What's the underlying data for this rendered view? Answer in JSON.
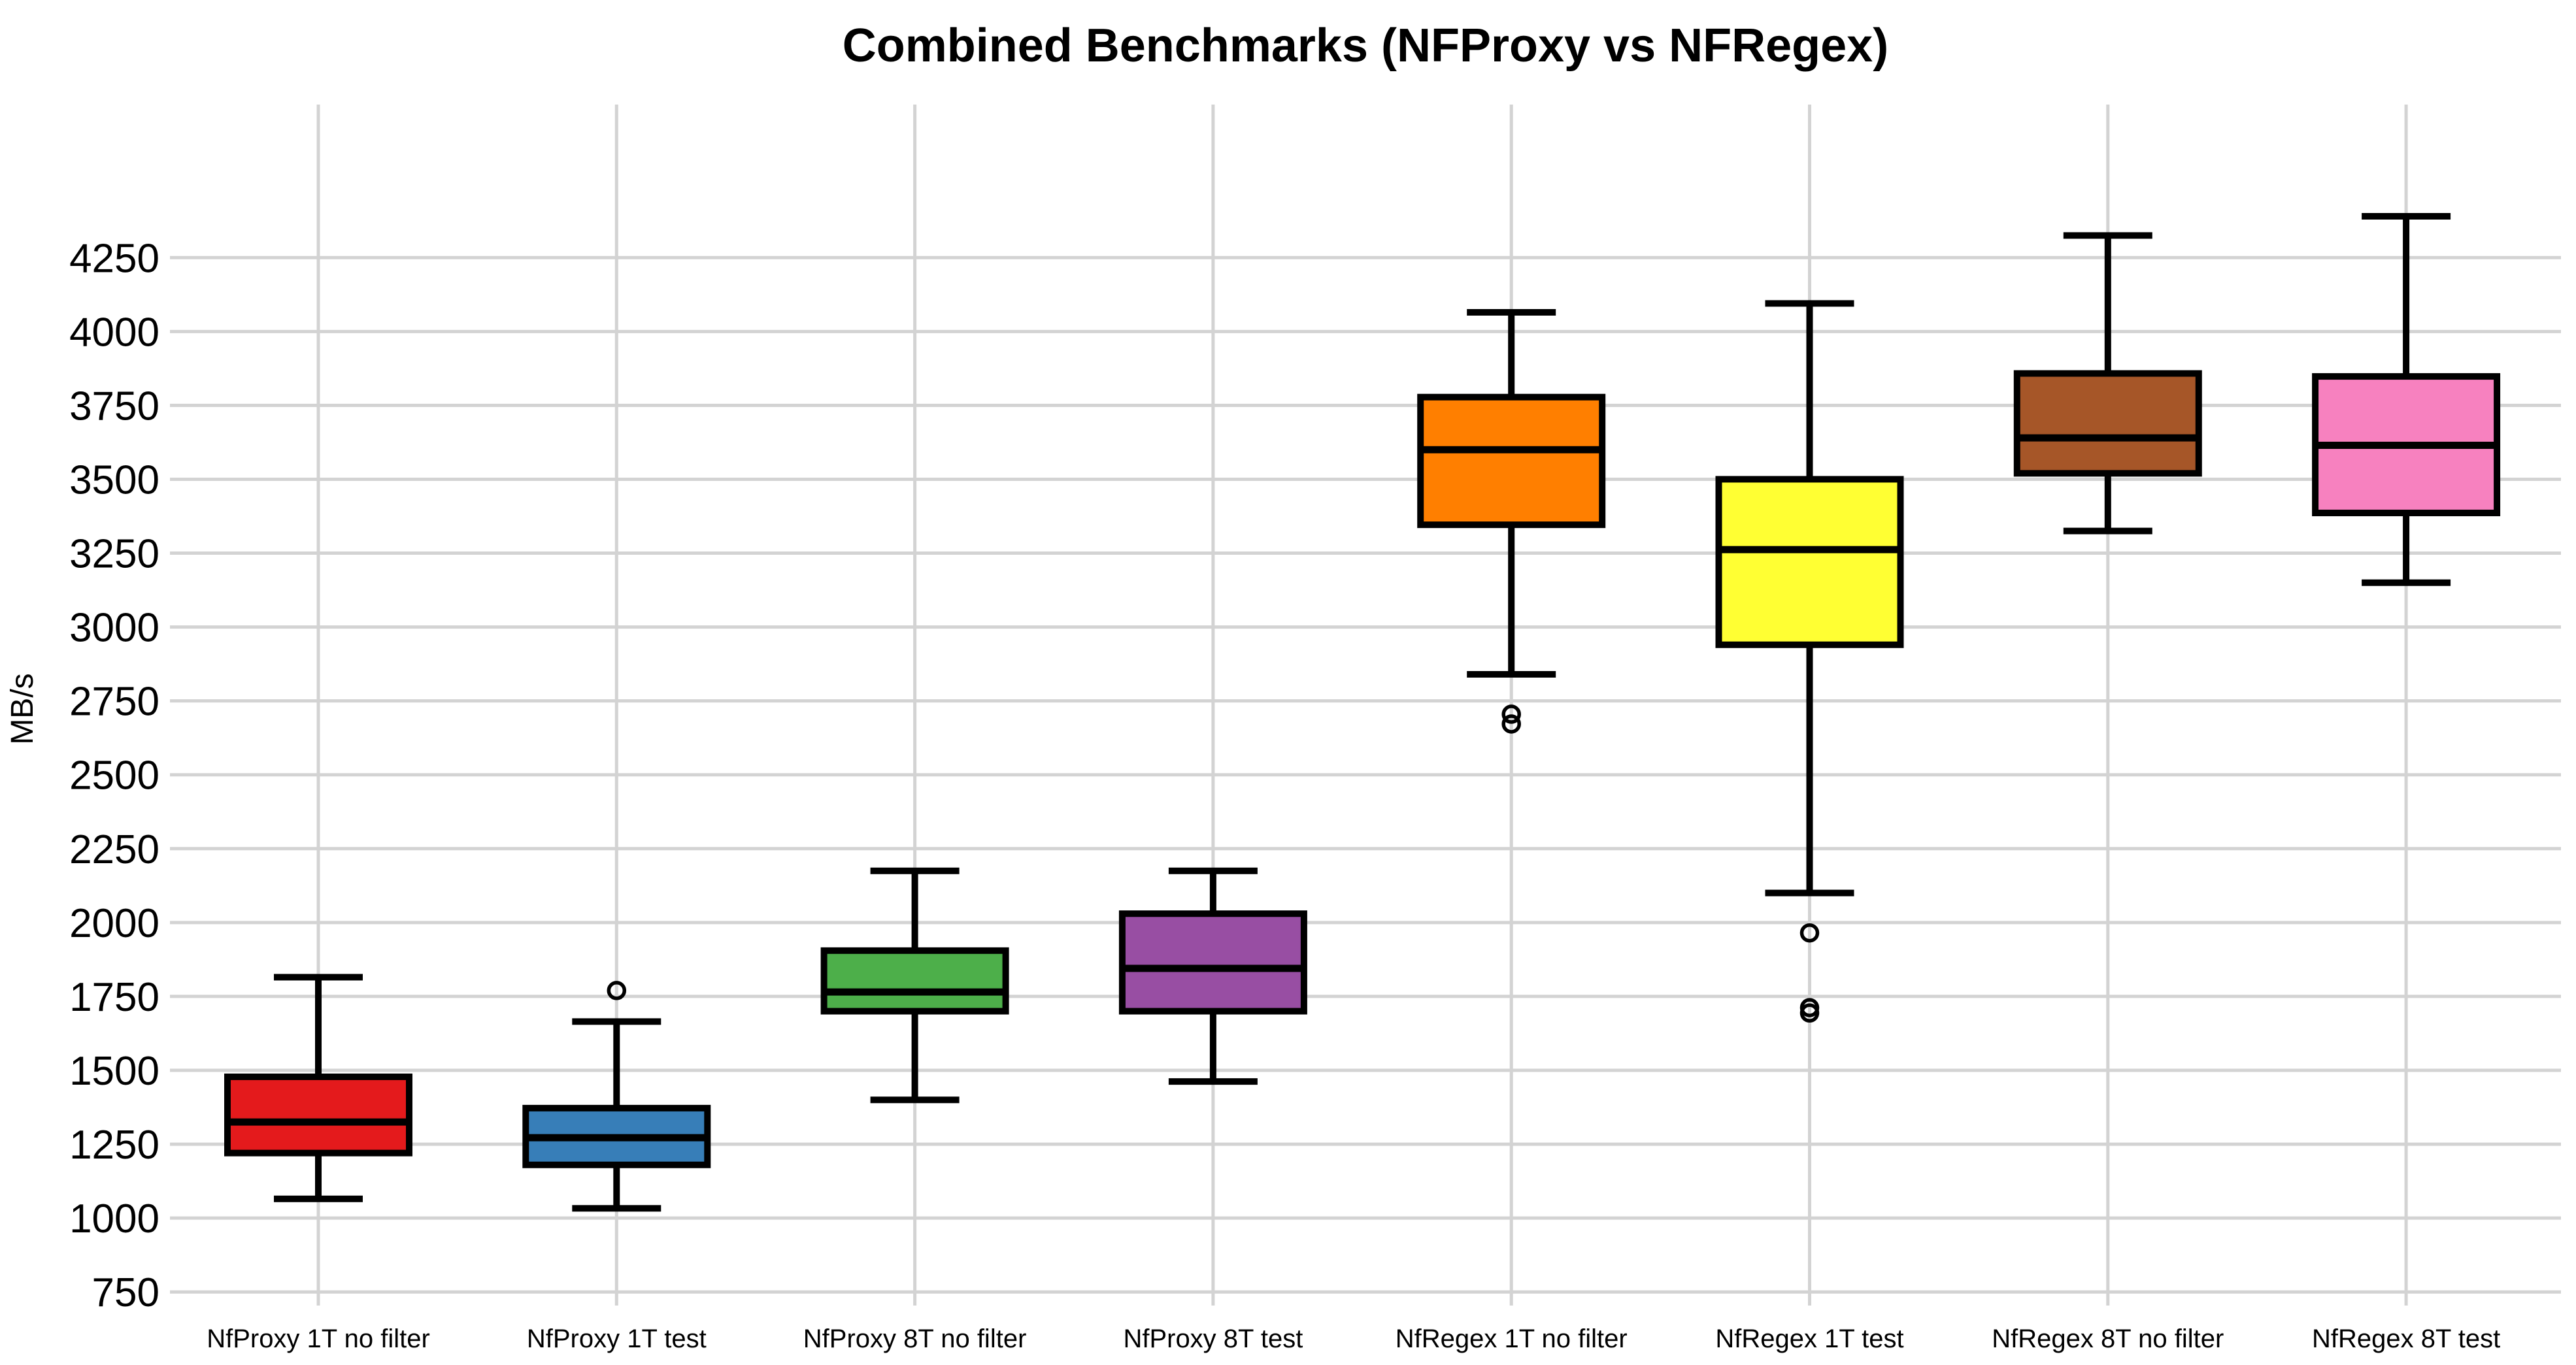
{
  "chart_data": {
    "type": "boxplot",
    "title": "Combined Benchmarks (NFProxy vs NFRegex)",
    "ylabel": "MB/s",
    "yticks": [
      750,
      1000,
      1250,
      1500,
      1750,
      2000,
      2250,
      2500,
      2750,
      3000,
      3250,
      3500,
      3750,
      4000,
      4250
    ],
    "ylim": [
      704,
      4768
    ],
    "grid": {
      "horizontal": true,
      "vertical": true,
      "color": "#d3d3d3"
    },
    "legend": "none",
    "categories": [
      "NfProxy 1T no filter",
      "NfProxy 1T test",
      "NfProxy 8T no filter",
      "NfProxy 8T test",
      "NfRegex 1T no filter",
      "NfRegex 1T test",
      "NfRegex 8T no filter",
      "NfRegex 8T test"
    ],
    "series": [
      {
        "label": "NfProxy 1T no filter",
        "color": "#e41a1c",
        "whislo": 1065,
        "q1": 1220,
        "med": 1325,
        "q3": 1478,
        "whishi": 1815,
        "outliers": []
      },
      {
        "label": "NfProxy 1T test",
        "color": "#377eb8",
        "whislo": 1033,
        "q1": 1180,
        "med": 1272,
        "q3": 1372,
        "whishi": 1665,
        "outliers": [
          1770
        ]
      },
      {
        "label": "NfProxy 8T no filter",
        "color": "#4daf4a",
        "whislo": 1400,
        "q1": 1700,
        "med": 1765,
        "q3": 1905,
        "whishi": 2175,
        "outliers": []
      },
      {
        "label": "NfProxy 8T test",
        "color": "#984ea3",
        "whislo": 1462,
        "q1": 1700,
        "med": 1845,
        "q3": 2030,
        "whishi": 2175,
        "outliers": []
      },
      {
        "label": "NfRegex 1T no filter",
        "color": "#ff7f00",
        "whislo": 2840,
        "q1": 3346,
        "med": 3600,
        "q3": 3778,
        "whishi": 4065,
        "outliers": [
          2705,
          2672
        ]
      },
      {
        "label": "NfRegex 1T test",
        "color": "#ffff33",
        "whislo": 2100,
        "q1": 2940,
        "med": 3262,
        "q3": 3500,
        "whishi": 4095,
        "outliers": [
          1965,
          1712,
          1694
        ]
      },
      {
        "label": "NfRegex 8T no filter",
        "color": "#a65628",
        "whislo": 3325,
        "q1": 3520,
        "med": 3640,
        "q3": 3858,
        "whishi": 4325,
        "outliers": []
      },
      {
        "label": "NfRegex 8T test",
        "color": "#f781bf",
        "whislo": 3150,
        "q1": 3386,
        "med": 3615,
        "q3": 3848,
        "whishi": 4390,
        "outliers": []
      }
    ],
    "box_edge_color": "#000000",
    "text_color": "#000000",
    "background_color": "#ffffff"
  }
}
